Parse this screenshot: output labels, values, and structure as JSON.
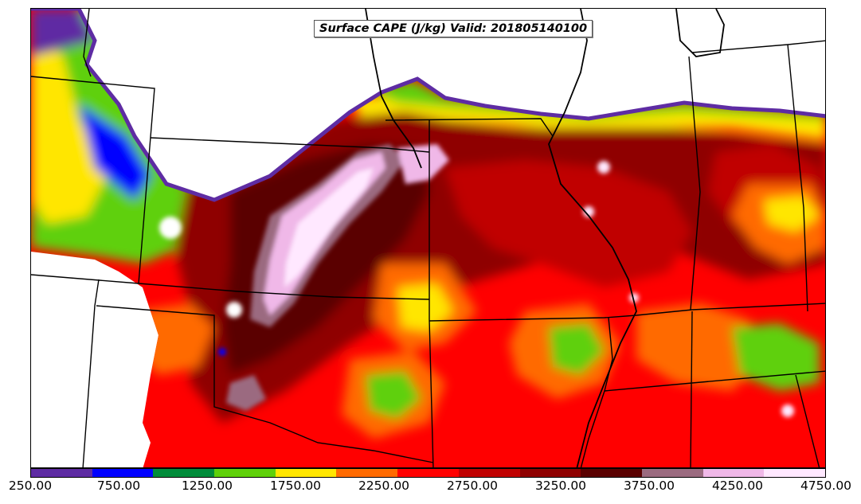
{
  "title": "Surface CAPE (J/kg) Valid: 201805140100",
  "legend": {
    "colors": [
      "#5e2ca3",
      "#0000ff",
      "#008c3a",
      "#5fd00a",
      "#ffe600",
      "#ff6a00",
      "#ff0000",
      "#c00000",
      "#8f0000",
      "#5a0000",
      "#9b6b80",
      "#f0b8e8",
      "#ffe8ff"
    ],
    "tick_labels": [
      "250.00",
      "750.00",
      "1250.00",
      "1750.00",
      "2250.00",
      "2750.00",
      "3250.00",
      "3750.00",
      "4250.00",
      "4750.00"
    ]
  }
}
